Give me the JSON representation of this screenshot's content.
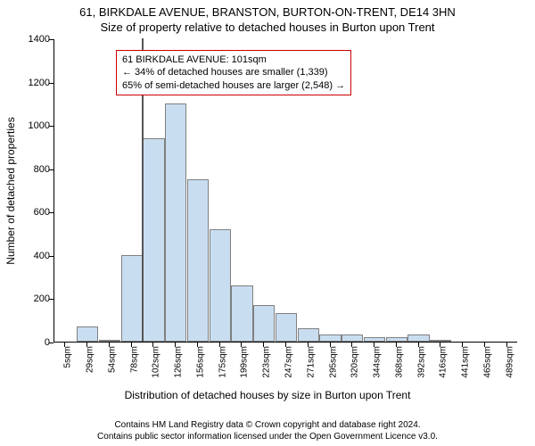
{
  "title_main": "61, BIRKDALE AVENUE, BRANSTON, BURTON-ON-TRENT, DE14 3HN",
  "title_sub": "Size of property relative to detached houses in Burton upon Trent",
  "chart": {
    "type": "bar",
    "ylabel": "Number of detached properties",
    "xlabel": "Distribution of detached houses by size in Burton upon Trent",
    "ylim_max": 1400,
    "ytick_step": 200,
    "yticks": [
      0,
      200,
      400,
      600,
      800,
      1000,
      1200,
      1400
    ],
    "bar_fill": "#c9ddf0",
    "bar_border": "#808080",
    "background": "#ffffff",
    "marker_color": "#555555",
    "marker_category_index": 4,
    "categories": [
      "5sqm",
      "29sqm",
      "54sqm",
      "78sqm",
      "102sqm",
      "126sqm",
      "156sqm",
      "175sqm",
      "199sqm",
      "223sqm",
      "247sqm",
      "271sqm",
      "295sqm",
      "320sqm",
      "344sqm",
      "368sqm",
      "392sqm",
      "416sqm",
      "441sqm",
      "465sqm",
      "489sqm"
    ],
    "values": [
      0,
      70,
      10,
      400,
      940,
      1100,
      750,
      520,
      260,
      170,
      130,
      60,
      35,
      35,
      20,
      20,
      35,
      5,
      0,
      0,
      0
    ]
  },
  "annotation": {
    "border_color": "#cc0000",
    "lines": [
      "61 BIRKDALE AVENUE: 101sqm",
      "← 34% of detached houses are smaller (1,339)",
      "65% of semi-detached houses are larger (2,548) →"
    ]
  },
  "footer": {
    "line1": "Contains HM Land Registry data © Crown copyright and database right 2024.",
    "line2": "Contains public sector information licensed under the Open Government Licence v3.0."
  }
}
